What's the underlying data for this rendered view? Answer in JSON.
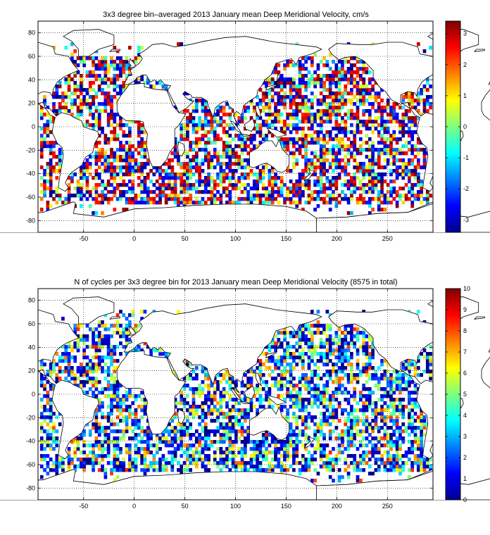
{
  "chart_data": [
    {
      "type": "heatmap",
      "title": "3x3 degree bin–averaged 2013 January mean Deep Meridional Velocity, cm/s",
      "x_ticks": [
        "-50",
        "0",
        "50",
        "100",
        "150",
        "200",
        "250"
      ],
      "y_ticks": [
        "80",
        "60",
        "40",
        "20",
        "0",
        "-20",
        "-40",
        "-60",
        "-80"
      ],
      "xlim": [
        -95,
        295
      ],
      "ylim": [
        -90,
        90
      ],
      "grid": true,
      "bin_size_deg": 3,
      "colorbar": {
        "min": -3.4,
        "max": 3.4,
        "ticks": [
          "3",
          "2",
          "1",
          "0",
          "-1",
          "-2",
          "-3"
        ],
        "colormap": "jet"
      }
    },
    {
      "type": "heatmap",
      "title": "N of cycles per 3x3 degree bin for 2013 January mean Deep Meridional Velocity (8575 in total)",
      "x_ticks": [
        "-50",
        "0",
        "50",
        "100",
        "150",
        "200",
        "250"
      ],
      "y_ticks": [
        "80",
        "60",
        "40",
        "20",
        "0",
        "-20",
        "-40",
        "-60",
        "-80"
      ],
      "xlim": [
        -95,
        295
      ],
      "ylim": [
        -90,
        90
      ],
      "grid": true,
      "bin_size_deg": 3,
      "colorbar": {
        "min": 0,
        "max": 10,
        "ticks": [
          "10",
          "9",
          "8",
          "7",
          "6",
          "5",
          "4",
          "3",
          "2",
          "1",
          "0"
        ],
        "colormap": "jet"
      }
    }
  ]
}
